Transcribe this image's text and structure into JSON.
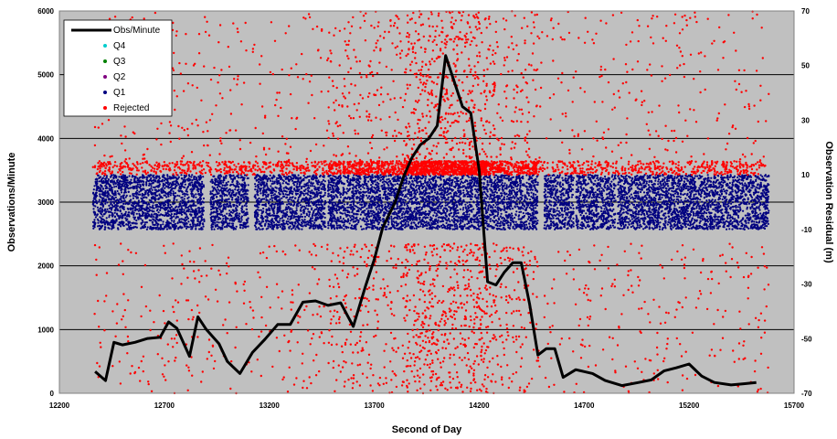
{
  "chart_data": {
    "type": "scatter",
    "title": "",
    "xlabel": "Second of Day",
    "ylabel": "Observations/Minute",
    "y2label": "Observation Residual (m)",
    "xlim": [
      12200,
      15700
    ],
    "ylim": [
      0,
      6000
    ],
    "y2lim": [
      -70,
      70
    ],
    "x_ticks": [
      12200,
      12700,
      13200,
      13700,
      14200,
      14700,
      15200,
      15700
    ],
    "y_ticks": [
      0,
      1000,
      2000,
      3000,
      4000,
      5000,
      6000
    ],
    "y2_ticks": [
      -70,
      -50,
      -30,
      -10,
      10,
      30,
      50,
      70
    ],
    "grid": "horizontal",
    "legend_position": "top-left",
    "colors": {
      "plot_bg": "#c0c0c0",
      "obs_line": "#000000",
      "q4": "#00cccc",
      "q3": "#008000",
      "q2": "#800080",
      "q1": "#000080",
      "rejected": "#ff0000"
    },
    "series": [
      {
        "name": "Obs/Minute",
        "axis": "left",
        "style": "line",
        "x": [
          12370,
          12420,
          12460,
          12500,
          12560,
          12620,
          12680,
          12720,
          12760,
          12820,
          12860,
          12900,
          12960,
          13000,
          13060,
          13120,
          13180,
          13240,
          13300,
          13360,
          13420,
          13480,
          13540,
          13600,
          13660,
          13700,
          13740,
          13800,
          13840,
          13880,
          13920,
          13960,
          14000,
          14040,
          14080,
          14120,
          14160,
          14200,
          14240,
          14280,
          14320,
          14360,
          14400,
          14440,
          14480,
          14520,
          14560,
          14600,
          14660,
          14700,
          14740,
          14800,
          14880,
          14960,
          15020,
          15080,
          15140,
          15200,
          15260,
          15320,
          15400,
          15460,
          15520
        ],
        "y": [
          340,
          200,
          800,
          760,
          800,
          860,
          880,
          1120,
          1020,
          580,
          1200,
          1000,
          780,
          500,
          310,
          640,
          850,
          1080,
          1080,
          1430,
          1450,
          1380,
          1420,
          1050,
          1700,
          2100,
          2600,
          3000,
          3400,
          3700,
          3900,
          4000,
          4200,
          5300,
          4900,
          4500,
          4400,
          3500,
          1750,
          1700,
          1900,
          2050,
          2050,
          1400,
          600,
          700,
          700,
          250,
          370,
          340,
          310,
          200,
          120,
          170,
          210,
          350,
          400,
          460,
          270,
          170,
          130,
          150,
          170
        ]
      },
      {
        "name": "Q4",
        "axis": "right",
        "style": "markers",
        "values": []
      },
      {
        "name": "Q3",
        "axis": "right",
        "style": "markers",
        "values": []
      },
      {
        "name": "Q2",
        "axis": "right",
        "style": "markers",
        "values": []
      },
      {
        "name": "Q1",
        "axis": "right",
        "style": "markers",
        "segments": [
          [
            12360,
            12890
          ],
          [
            12920,
            13100
          ],
          [
            13130,
            13470
          ],
          [
            13480,
            14480
          ],
          [
            14510,
            14650
          ],
          [
            14660,
            14850
          ],
          [
            14860,
            15580
          ]
        ],
        "range": [
          -10,
          10
        ]
      },
      {
        "name": "Rejected",
        "axis": "right",
        "style": "markers",
        "x_range": [
          12360,
          15580
        ],
        "dense_band": [
          13850,
          14240
        ],
        "range": [
          -70,
          70
        ]
      }
    ]
  }
}
